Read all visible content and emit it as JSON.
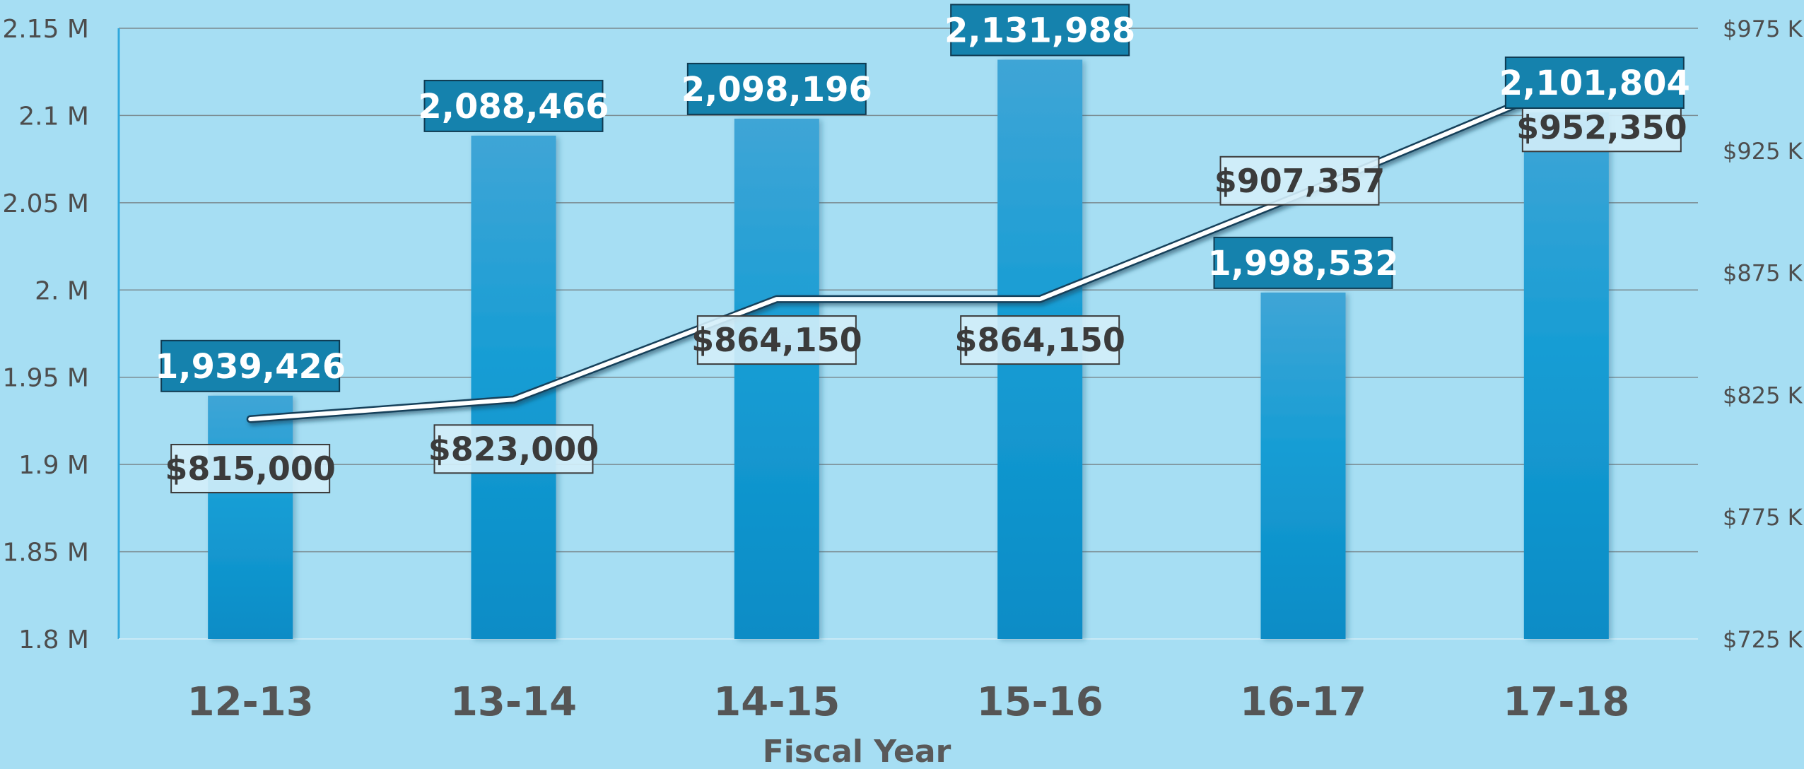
{
  "chart_data": {
    "type": "bar",
    "title": "",
    "xlabel": "Fiscal Year",
    "ylabel": "",
    "y2label": "",
    "categories": [
      "12-13",
      "13-14",
      "14-15",
      "15-16",
      "16-17",
      "17-18"
    ],
    "series": [
      {
        "type": "bar",
        "axis": "left",
        "values": [
          1939426,
          2088466,
          2098196,
          2131988,
          1998532,
          2101804
        ],
        "labels": [
          "1,939,426",
          "2,088,466",
          "2,098,196",
          "2,131,988",
          "1,998,532",
          "2,101,804"
        ]
      },
      {
        "type": "line",
        "axis": "right",
        "values": [
          815000,
          823000,
          864150,
          864150,
          907357,
          952350
        ],
        "labels": [
          "$815,000",
          "$823,000",
          "$864,150",
          "$864,150",
          "$907,357",
          "$952,350"
        ]
      }
    ],
    "ylim": [
      1800000,
      2150000
    ],
    "y_ticks": [
      1800000,
      1850000,
      1900000,
      1950000,
      2000000,
      2050000,
      2100000,
      2150000
    ],
    "y_tick_labels": [
      "1.8 M",
      "1.85 M",
      "1.9 M",
      "1.95 M",
      "2. M",
      "2.05 M",
      "2.1 M",
      "2.15 M"
    ],
    "y2lim": [
      725000,
      975000
    ],
    "y2_ticks": [
      725000,
      775000,
      825000,
      875000,
      925000,
      975000
    ],
    "y2_tick_labels": [
      "$725 K",
      "$775 K",
      "$825 K",
      "$875 K",
      "$925 K",
      "$975 K"
    ],
    "grid": true,
    "legend": "none",
    "colors": {
      "background": "#a6def3",
      "bar_top": "#3fa5d6",
      "bar_bottom": "#0a8cc6",
      "bar_label_bg": "#1582ad",
      "line": "#ffffff",
      "line_label_bg": "#d4eef9",
      "gridline": "#7a8a90",
      "left_axis": "#31a8dc"
    }
  }
}
